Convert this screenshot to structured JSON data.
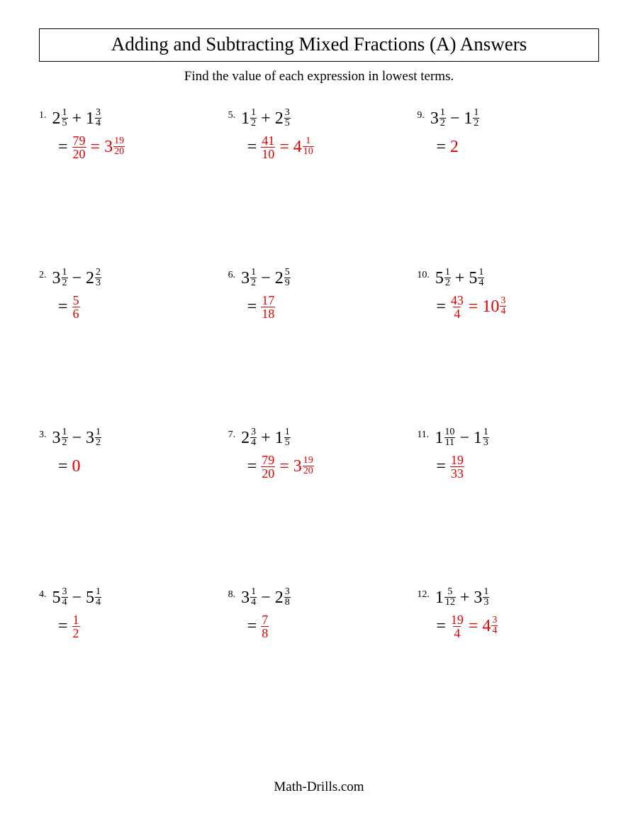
{
  "colors": {
    "answer": "#e00000",
    "text": "#000000",
    "background": "#ffffff"
  },
  "title": "Adding and Subtracting Mixed Fractions (A) Answers",
  "instructions": "Find the value of each expression in lowest terms.",
  "footer": "Math-Drills.com",
  "problems": [
    {
      "n": "1.",
      "a": {
        "w": "2",
        "num": "1",
        "den": "5"
      },
      "op": "+",
      "b": {
        "w": "1",
        "num": "3",
        "den": "4"
      },
      "ans_frac": {
        "num": "79",
        "den": "20"
      },
      "ans_mixed": {
        "w": "3",
        "num": "19",
        "den": "20"
      }
    },
    {
      "n": "2.",
      "a": {
        "w": "3",
        "num": "1",
        "den": "2"
      },
      "op": "−",
      "b": {
        "w": "2",
        "num": "2",
        "den": "3"
      },
      "ans_frac": {
        "num": "5",
        "den": "6"
      }
    },
    {
      "n": "3.",
      "a": {
        "w": "3",
        "num": "1",
        "den": "2"
      },
      "op": "−",
      "b": {
        "w": "3",
        "num": "1",
        "den": "2"
      },
      "ans_whole": "0"
    },
    {
      "n": "4.",
      "a": {
        "w": "5",
        "num": "3",
        "den": "4"
      },
      "op": "−",
      "b": {
        "w": "5",
        "num": "1",
        "den": "4"
      },
      "ans_frac": {
        "num": "1",
        "den": "2"
      }
    },
    {
      "n": "5.",
      "a": {
        "w": "1",
        "num": "1",
        "den": "2"
      },
      "op": "+",
      "b": {
        "w": "2",
        "num": "3",
        "den": "5"
      },
      "ans_frac": {
        "num": "41",
        "den": "10"
      },
      "ans_mixed": {
        "w": "4",
        "num": "1",
        "den": "10"
      }
    },
    {
      "n": "6.",
      "a": {
        "w": "3",
        "num": "1",
        "den": "2"
      },
      "op": "−",
      "b": {
        "w": "2",
        "num": "5",
        "den": "9"
      },
      "ans_frac": {
        "num": "17",
        "den": "18"
      }
    },
    {
      "n": "7.",
      "a": {
        "w": "2",
        "num": "3",
        "den": "4"
      },
      "op": "+",
      "b": {
        "w": "1",
        "num": "1",
        "den": "5"
      },
      "ans_frac": {
        "num": "79",
        "den": "20"
      },
      "ans_mixed": {
        "w": "3",
        "num": "19",
        "den": "20"
      }
    },
    {
      "n": "8.",
      "a": {
        "w": "3",
        "num": "1",
        "den": "4"
      },
      "op": "−",
      "b": {
        "w": "2",
        "num": "3",
        "den": "8"
      },
      "ans_frac": {
        "num": "7",
        "den": "8"
      }
    },
    {
      "n": "9.",
      "a": {
        "w": "3",
        "num": "1",
        "den": "2"
      },
      "op": "−",
      "b": {
        "w": "1",
        "num": "1",
        "den": "2"
      },
      "ans_whole": "2"
    },
    {
      "n": "10.",
      "a": {
        "w": "5",
        "num": "1",
        "den": "2"
      },
      "op": "+",
      "b": {
        "w": "5",
        "num": "1",
        "den": "4"
      },
      "ans_frac": {
        "num": "43",
        "den": "4"
      },
      "ans_mixed": {
        "w": "10",
        "num": "3",
        "den": "4"
      }
    },
    {
      "n": "11.",
      "a": {
        "w": "1",
        "num": "10",
        "den": "11"
      },
      "op": "−",
      "b": {
        "w": "1",
        "num": "1",
        "den": "3"
      },
      "ans_frac": {
        "num": "19",
        "den": "33"
      }
    },
    {
      "n": "12.",
      "a": {
        "w": "1",
        "num": "5",
        "den": "12"
      },
      "op": "+",
      "b": {
        "w": "3",
        "num": "1",
        "den": "3"
      },
      "ans_frac": {
        "num": "19",
        "den": "4"
      },
      "ans_mixed": {
        "w": "4",
        "num": "3",
        "den": "4"
      }
    }
  ],
  "grid_order": [
    0,
    4,
    8,
    1,
    5,
    9,
    2,
    6,
    10,
    3,
    7,
    11
  ]
}
